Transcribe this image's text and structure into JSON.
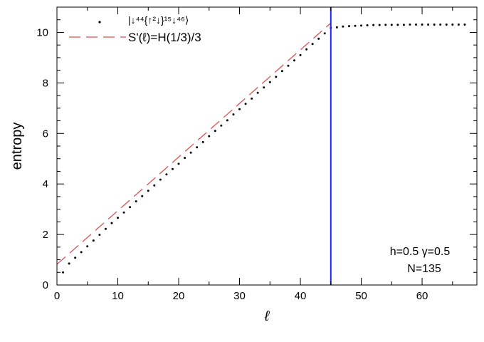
{
  "chart_data": {
    "type": "scatter",
    "xlabel": "ℓ",
    "ylabel": "entropy",
    "xlim": [
      0,
      69
    ],
    "ylim": [
      0,
      11
    ],
    "x_ticks": [
      0,
      10,
      20,
      30,
      40,
      50,
      60
    ],
    "y_ticks": [
      0,
      2,
      4,
      6,
      8,
      10
    ],
    "grid": false,
    "legend_position": "top-left",
    "legend": {
      "dots_label": "|↓⁴⁴{↑²↓}¹⁵↓⁴⁶⟩",
      "line_label": "S'(ℓ)=H(1/3)/3"
    },
    "annotation": {
      "params": "h=0.5  γ=0.5",
      "size": "N=135"
    },
    "vertical_marker": {
      "x": 45,
      "color": "#2222ee"
    },
    "colors": {
      "dots": "#000000",
      "fit_line": "#e05050"
    },
    "series": [
      {
        "type": "line",
        "style": "dashed",
        "x": [
          0,
          45
        ],
        "y": [
          0.82,
          10.37
        ]
      },
      {
        "type": "scatter",
        "x": [
          1,
          2,
          3,
          4,
          5,
          6,
          7,
          8,
          9,
          10,
          11,
          12,
          13,
          14,
          15,
          16,
          17,
          18,
          19,
          20,
          21,
          22,
          23,
          24,
          25,
          26,
          27,
          28,
          29,
          30,
          31,
          32,
          33,
          34,
          35,
          36,
          37,
          38,
          39,
          40,
          41,
          42,
          43,
          44,
          45,
          46,
          47,
          48,
          49,
          50,
          51,
          52,
          53,
          54,
          55,
          56,
          57,
          58,
          59,
          60,
          61,
          62,
          63,
          64,
          65,
          66,
          67
        ],
        "y": [
          0.5,
          0.85,
          1.08,
          1.3,
          1.53,
          1.76,
          1.99,
          2.22,
          2.45,
          2.66,
          2.87,
          3.08,
          3.31,
          3.52,
          3.73,
          3.94,
          4.17,
          4.38,
          4.59,
          4.8,
          5.03,
          5.24,
          5.45,
          5.66,
          5.89,
          6.1,
          6.31,
          6.52,
          6.75,
          6.96,
          7.17,
          7.38,
          7.61,
          7.82,
          8.03,
          8.24,
          8.47,
          8.68,
          8.89,
          9.1,
          9.33,
          9.54,
          9.75,
          9.96,
          10.18,
          10.2,
          10.23,
          10.25,
          10.26,
          10.27,
          10.28,
          10.29,
          10.29,
          10.3,
          10.3,
          10.3,
          10.3,
          10.31,
          10.31,
          10.31,
          10.31,
          10.31,
          10.31,
          10.31,
          10.31,
          10.31,
          10.31
        ]
      }
    ]
  }
}
